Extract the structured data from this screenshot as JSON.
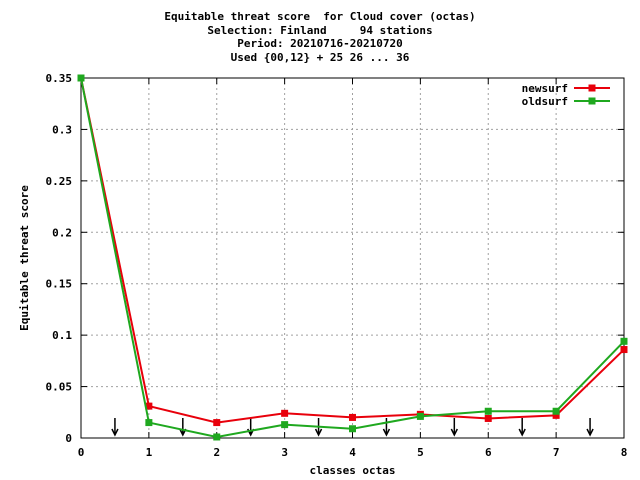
{
  "chart_data": {
    "type": "line",
    "title_lines": [
      "Equitable threat score  for Cloud cover (octas)",
      "Selection: Finland     94 stations",
      "Period: 20210716-20210720",
      "Used {00,12} + 25 26 ... 36"
    ],
    "xlabel": "classes octas",
    "ylabel": "Equitable threat score",
    "xlim": [
      0,
      8
    ],
    "ylim": [
      0,
      0.35
    ],
    "xticks": [
      "0",
      "1",
      "2",
      "3",
      "4",
      "5",
      "6",
      "7",
      "8"
    ],
    "yticks": [
      "0",
      "0.05",
      "0.1",
      "0.15",
      "0.2",
      "0.25",
      "0.3",
      "0.35"
    ],
    "grid": true,
    "legend_position": "top-right",
    "x": [
      0,
      1,
      2,
      3,
      4,
      5,
      6,
      7,
      8
    ],
    "series": [
      {
        "name": "newsurf",
        "color": "#e8000b",
        "values": [
          0.35,
          0.031,
          0.015,
          0.024,
          0.02,
          0.023,
          0.019,
          0.022,
          0.086
        ]
      },
      {
        "name": "oldsurf",
        "color": "#1fa81f",
        "values": [
          0.35,
          0.015,
          0.001,
          0.013,
          0.009,
          0.021,
          0.026,
          0.026,
          0.094
        ]
      }
    ],
    "arrow_markers_x": [
      0.5,
      1.5,
      2.5,
      3.5,
      4.5,
      5.5,
      6.5,
      7.5
    ]
  }
}
